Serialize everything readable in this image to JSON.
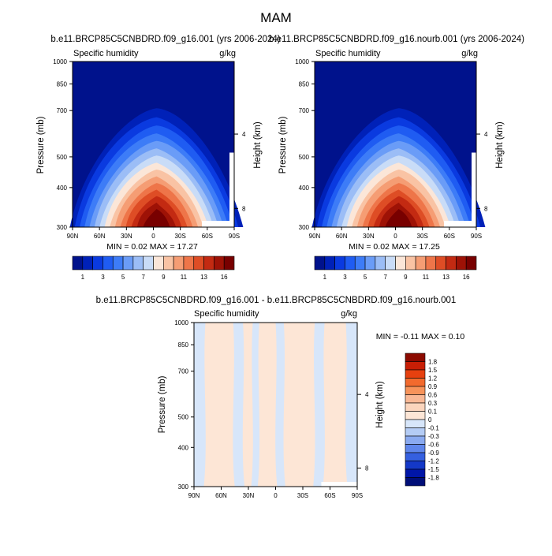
{
  "figure": {
    "title": "MAM"
  },
  "panels": [
    {
      "id": "panel-1",
      "title": "b.e11.BRCP85C5CNBDRD.f09_g16.001 (yrs 2006-2024)",
      "left_label": "Specific humidity",
      "right_label": "g/kg",
      "ylabel": "Pressure (mb)",
      "ylabel_right": "Height (km)",
      "stats": "MIN =  0.02  MAX =  17.27"
    },
    {
      "id": "panel-2",
      "title": "b.e11.BRCP85C5CNBDRD.f09_g16.nourb.001 (yrs 2006-2024)",
      "left_label": "Specific humidity",
      "right_label": "g/kg",
      "ylabel": "Pressure (mb)",
      "ylabel_right": "Height (km)",
      "stats": "MIN =  0.02  MAX =  17.25"
    },
    {
      "id": "panel-3",
      "title": "b.e11.BRCP85C5CNBDRD.f09_g16.001 - b.e11.BRCP85C5CNBDRD.f09_g16.nourb.001",
      "left_label": "Specific humidity",
      "right_label": "g/kg",
      "ylabel": "Pressure (mb)",
      "ylabel_right": "Height (km)",
      "stats": "MIN = -0.11  MAX =   0.10"
    }
  ],
  "chart_data": [
    {
      "type": "heatmap",
      "subtype": "filled-contour latitude-pressure cross section",
      "title": "b.e11.BRCP85C5CNBDRD.f09_g16.001 (yrs 2006-2024)",
      "variable": "Specific humidity",
      "units": "g/kg",
      "xlabel": "",
      "ylabel": "Pressure (mb)",
      "ylabel_right": "Height (km)",
      "x_ticks": [
        "90N",
        "60N",
        "30N",
        "0",
        "30S",
        "60S",
        "90S"
      ],
      "x_range_deg": [
        90,
        -90
      ],
      "y_ticks_pressure": [
        300,
        400,
        500,
        700,
        850,
        1000
      ],
      "y_range_pressure": [
        1000,
        300
      ],
      "y_scale": "log",
      "y_ticks_height_km": [
        4,
        8
      ],
      "min": 0.02,
      "max": 17.27,
      "peak_latitude_deg": 0,
      "colorbar": {
        "orientation": "horizontal",
        "levels": [
          1,
          2,
          3,
          4,
          5,
          6,
          7,
          8,
          9,
          10,
          11,
          12,
          13,
          14,
          16
        ],
        "labels": [
          "1",
          "3",
          "5",
          "7",
          "9",
          "11",
          "13",
          "16"
        ],
        "colors": [
          "#00128c",
          "#0021b8",
          "#0a3ae0",
          "#1f5cf2",
          "#3d7cf7",
          "#6a9cf7",
          "#9bbdf6",
          "#c9dcf7",
          "#fbe6d8",
          "#f9c3a4",
          "#f59d74",
          "#ee7549",
          "#de4d25",
          "#c32a12",
          "#9e1206",
          "#780000"
        ]
      }
    },
    {
      "type": "heatmap",
      "subtype": "filled-contour latitude-pressure cross section",
      "title": "b.e11.BRCP85C5CNBDRD.f09_g16.nourb.001 (yrs 2006-2024)",
      "variable": "Specific humidity",
      "units": "g/kg",
      "xlabel": "",
      "ylabel": "Pressure (mb)",
      "ylabel_right": "Height (km)",
      "x_ticks": [
        "90N",
        "60N",
        "30N",
        "0",
        "30S",
        "60S",
        "90S"
      ],
      "x_range_deg": [
        90,
        -90
      ],
      "y_ticks_pressure": [
        300,
        400,
        500,
        700,
        850,
        1000
      ],
      "y_range_pressure": [
        1000,
        300
      ],
      "y_scale": "log",
      "y_ticks_height_km": [
        4,
        8
      ],
      "min": 0.02,
      "max": 17.25,
      "peak_latitude_deg": 0,
      "colorbar": {
        "orientation": "horizontal",
        "levels": [
          1,
          2,
          3,
          4,
          5,
          6,
          7,
          8,
          9,
          10,
          11,
          12,
          13,
          14,
          16
        ],
        "labels": [
          "1",
          "3",
          "5",
          "7",
          "9",
          "11",
          "13",
          "16"
        ],
        "colors": [
          "#00128c",
          "#0021b8",
          "#0a3ae0",
          "#1f5cf2",
          "#3d7cf7",
          "#6a9cf7",
          "#9bbdf6",
          "#c9dcf7",
          "#fbe6d8",
          "#f9c3a4",
          "#f59d74",
          "#ee7549",
          "#de4d25",
          "#c32a12",
          "#9e1206",
          "#780000"
        ]
      }
    },
    {
      "type": "heatmap",
      "subtype": "filled-contour difference cross section",
      "title": "b.e11.BRCP85C5CNBDRD.f09_g16.001 - b.e11.BRCP85C5CNBDRD.f09_g16.nourb.001",
      "variable": "Specific humidity",
      "units": "g/kg",
      "xlabel": "",
      "ylabel": "Pressure (mb)",
      "ylabel_right": "Height (km)",
      "x_ticks": [
        "90N",
        "60N",
        "30N",
        "0",
        "30S",
        "60S",
        "90S"
      ],
      "x_range_deg": [
        90,
        -90
      ],
      "y_ticks_pressure": [
        300,
        400,
        500,
        700,
        850,
        1000
      ],
      "y_range_pressure": [
        1000,
        300
      ],
      "y_scale": "log",
      "y_ticks_height_km": [
        4,
        8
      ],
      "min": -0.11,
      "max": 0.1,
      "colorbar": {
        "orientation": "vertical",
        "labels": [
          "1.8",
          "1.5",
          "1.2",
          "0.9",
          "0.6",
          "0.3",
          "0.1",
          "0",
          "-0.1",
          "-0.3",
          "-0.6",
          "-0.9",
          "-1.2",
          "-1.5",
          "-1.8"
        ],
        "colors": [
          "#8c0a00",
          "#c81e05",
          "#e6400f",
          "#f26a2d",
          "#f7935a",
          "#f9b895",
          "#fbd5bd",
          "#fde6d6",
          "#d7e6fa",
          "#b4ccf5",
          "#8aaaf0",
          "#5f86eb",
          "#3560e0",
          "#1438c8",
          "#0016a8",
          "#000e78"
        ]
      },
      "dominant_bands": [
        "0 to 0.1",
        "-0.1 to 0"
      ]
    }
  ]
}
